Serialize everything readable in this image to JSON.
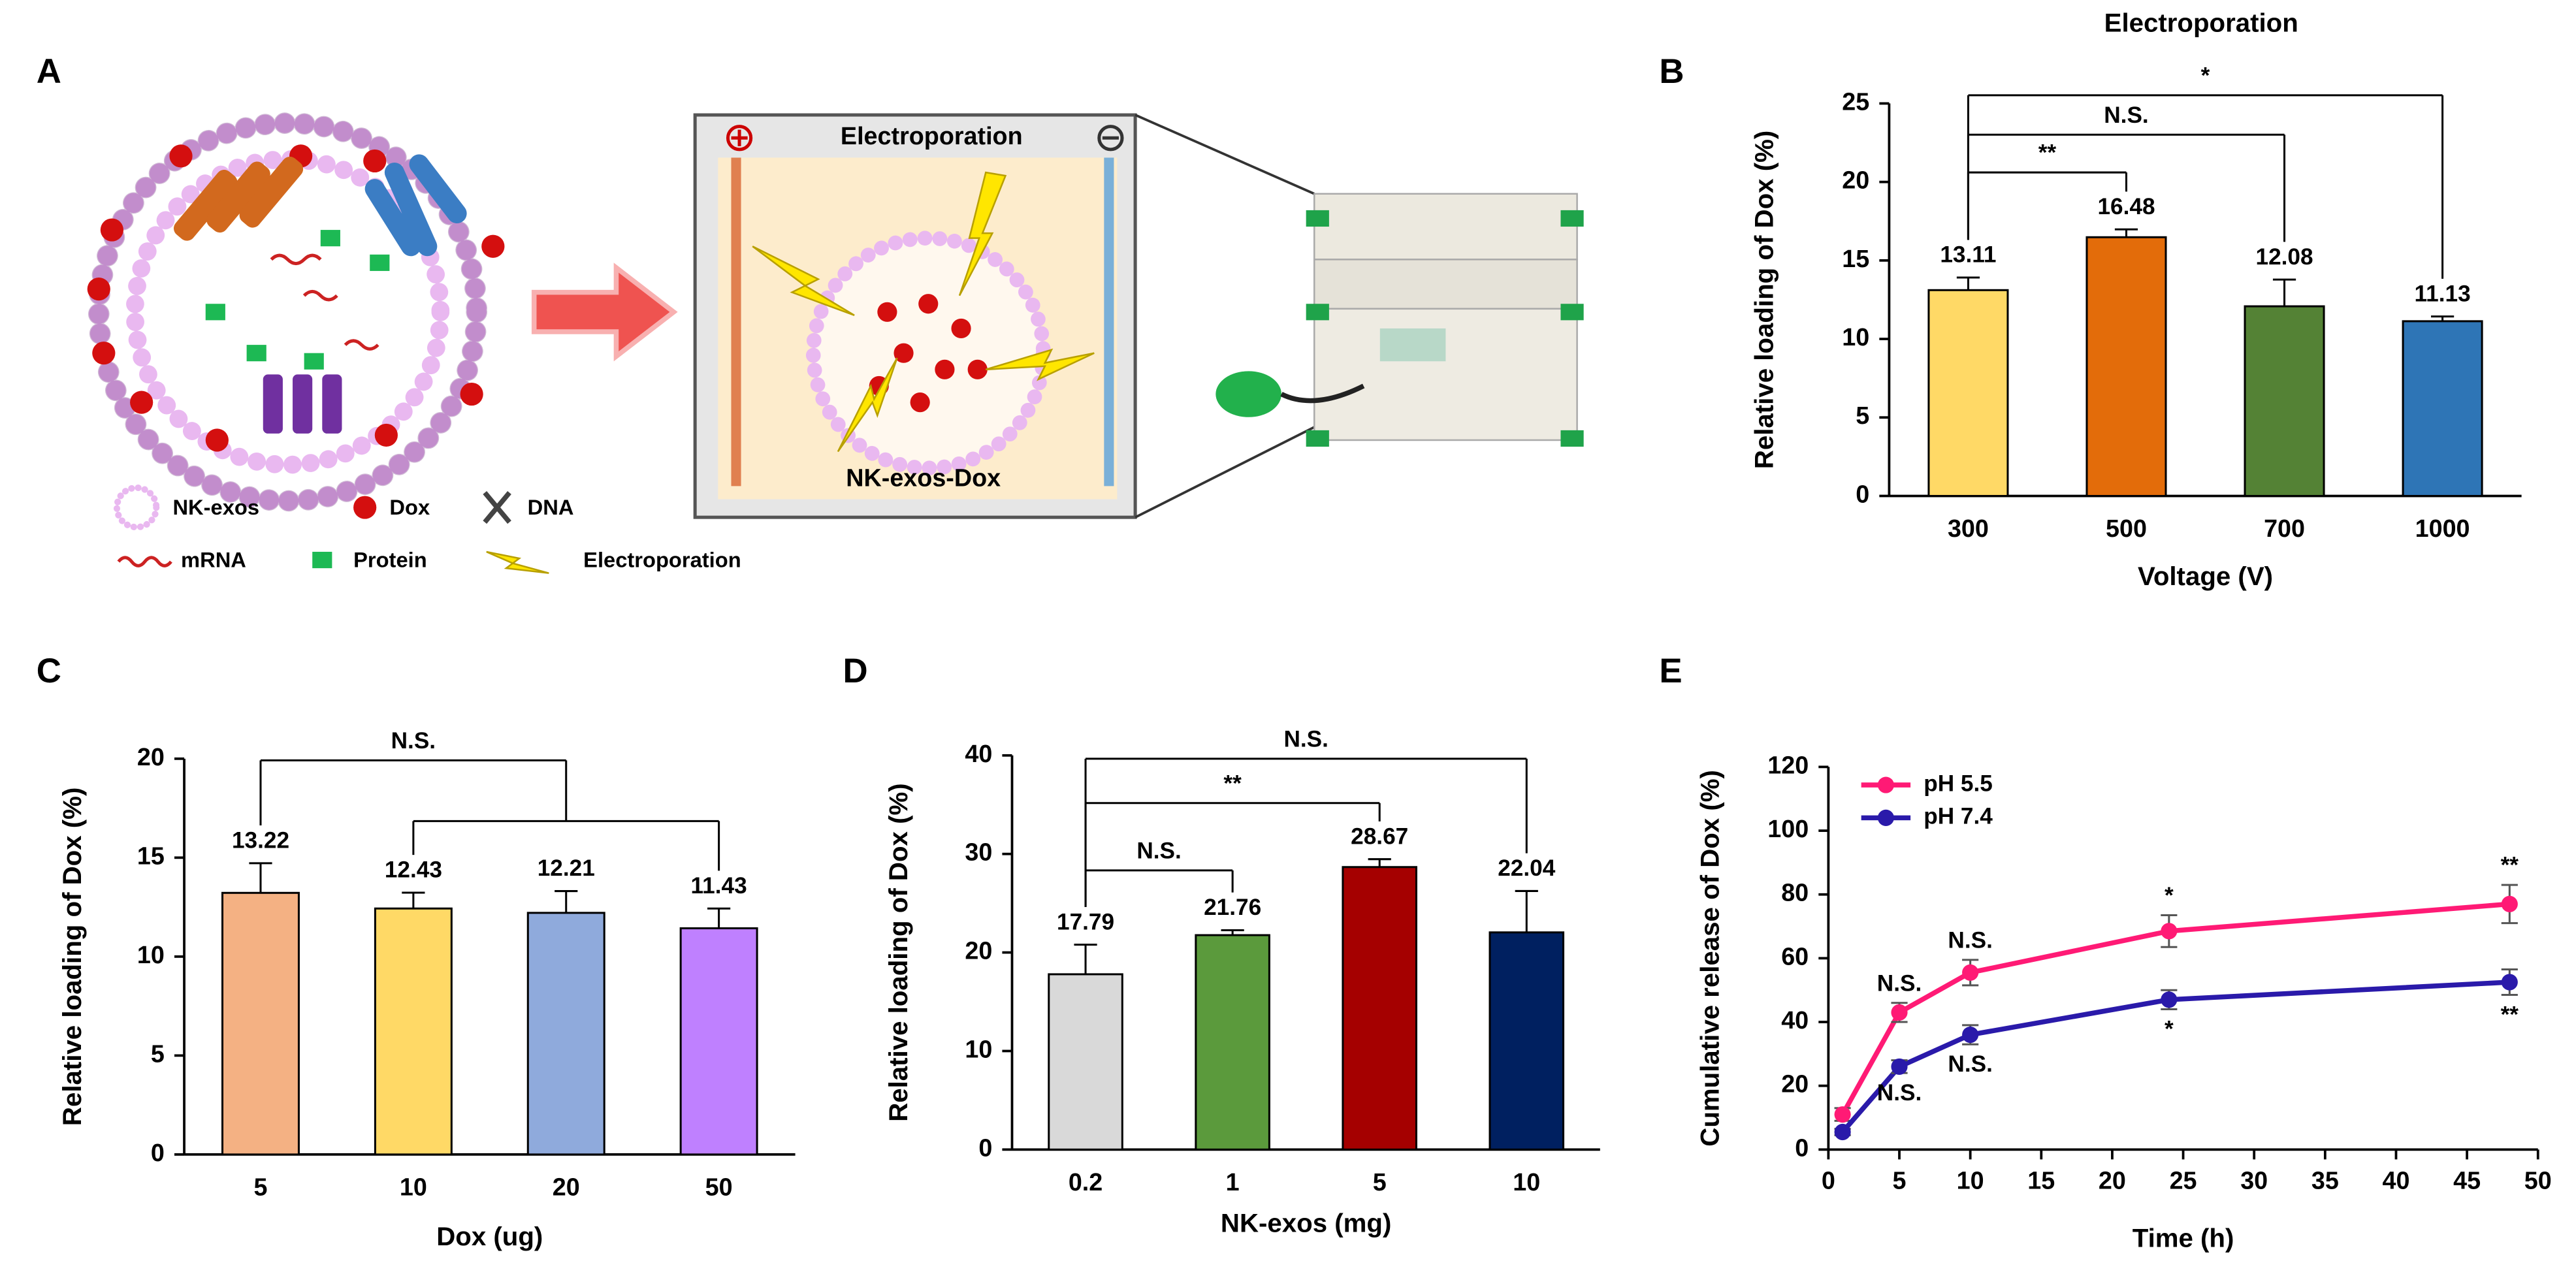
{
  "diagram": {
    "panel": "A",
    "box_title": "Electroporation",
    "box_label": "NK-exos-Dox",
    "legend": [
      "NK-exos",
      "Dox",
      "DNA",
      "mRNA",
      "Protein",
      "Electroporation"
    ]
  },
  "chart_data": [
    {
      "type": "bar",
      "panel": "B",
      "title": "Electroporation",
      "xlabel": "Voltage (V)",
      "ylabel": "Relative loading of Dox (%)",
      "categories": [
        "300",
        "500",
        "700",
        "1000"
      ],
      "values": [
        13.11,
        16.48,
        12.08,
        11.13
      ],
      "errors": [
        0.8,
        0.5,
        1.7,
        0.3
      ],
      "colors": [
        "#ffd966",
        "#e36c0a",
        "#548235",
        "#2e75b6"
      ],
      "ylim": [
        0,
        25
      ],
      "yticks": [
        0,
        5,
        10,
        15,
        20,
        25
      ],
      "brackets": [
        {
          "text": "**",
          "from": "300",
          "to": "500"
        },
        {
          "text": "N.S.",
          "from": "300",
          "to": "700"
        },
        {
          "text": "*",
          "from": "300",
          "to": "1000"
        }
      ]
    },
    {
      "type": "bar",
      "panel": "C",
      "xlabel": "Dox (ug)",
      "ylabel": "Relative loading of Dox (%)",
      "categories": [
        "5",
        "10",
        "20",
        "50"
      ],
      "values": [
        13.22,
        12.43,
        12.21,
        11.43
      ],
      "errors": [
        1.5,
        0.8,
        1.1,
        1.0
      ],
      "colors": [
        "#f4b183",
        "#ffd966",
        "#8faadc",
        "#bf80ff"
      ],
      "ylim": [
        0,
        20
      ],
      "yticks": [
        0,
        5,
        10,
        15,
        20
      ],
      "brackets": [
        {
          "text": "N.S.",
          "from": "5",
          "to": [
            "10",
            "50"
          ]
        }
      ]
    },
    {
      "type": "bar",
      "panel": "D",
      "xlabel": "NK-exos (mg)",
      "ylabel": "Relative loading of Dox (%)",
      "categories": [
        "0.2",
        "1",
        "5",
        "10"
      ],
      "values": [
        17.79,
        21.76,
        28.67,
        22.04
      ],
      "errors": [
        3.0,
        0.5,
        0.8,
        4.2
      ],
      "colors": [
        "#d9d9d9",
        "#5b9a3c",
        "#a50000",
        "#002060"
      ],
      "ylim": [
        0,
        40
      ],
      "yticks": [
        0,
        10,
        20,
        30,
        40
      ],
      "brackets": [
        {
          "text": "N.S.",
          "from": "0.2",
          "to": "1"
        },
        {
          "text": "**",
          "from": "0.2",
          "to": "5"
        },
        {
          "text": "N.S.",
          "from": "0.2",
          "to": "10"
        }
      ]
    },
    {
      "type": "line",
      "panel": "E",
      "xlabel": "Time (h)",
      "ylabel": "Cumulative release of Dox (%)",
      "x": [
        1,
        5,
        10,
        24,
        48
      ],
      "xlim": [
        0,
        50
      ],
      "xticks": [
        0,
        5,
        10,
        15,
        20,
        25,
        30,
        35,
        40,
        45,
        50
      ],
      "ylim": [
        0,
        120
      ],
      "yticks": [
        0,
        20,
        40,
        60,
        80,
        100,
        120
      ],
      "legend": "upper left",
      "series": [
        {
          "name": "pH 5.5",
          "color": "#ff1a75",
          "values": [
            11,
            43,
            55.5,
            68.5,
            77
          ],
          "errors": [
            2,
            3,
            4,
            5,
            6
          ],
          "point_labels": [
            null,
            "N.S.",
            "N.S.",
            "*",
            "**"
          ]
        },
        {
          "name": "pH 7.4",
          "color": "#2a1aaa",
          "values": [
            5.5,
            26,
            36,
            47,
            52.5
          ],
          "errors": [
            1,
            2,
            3,
            3,
            4
          ],
          "point_labels": [
            null,
            "N.S.",
            "N.S.",
            "*",
            "**"
          ]
        }
      ]
    }
  ]
}
